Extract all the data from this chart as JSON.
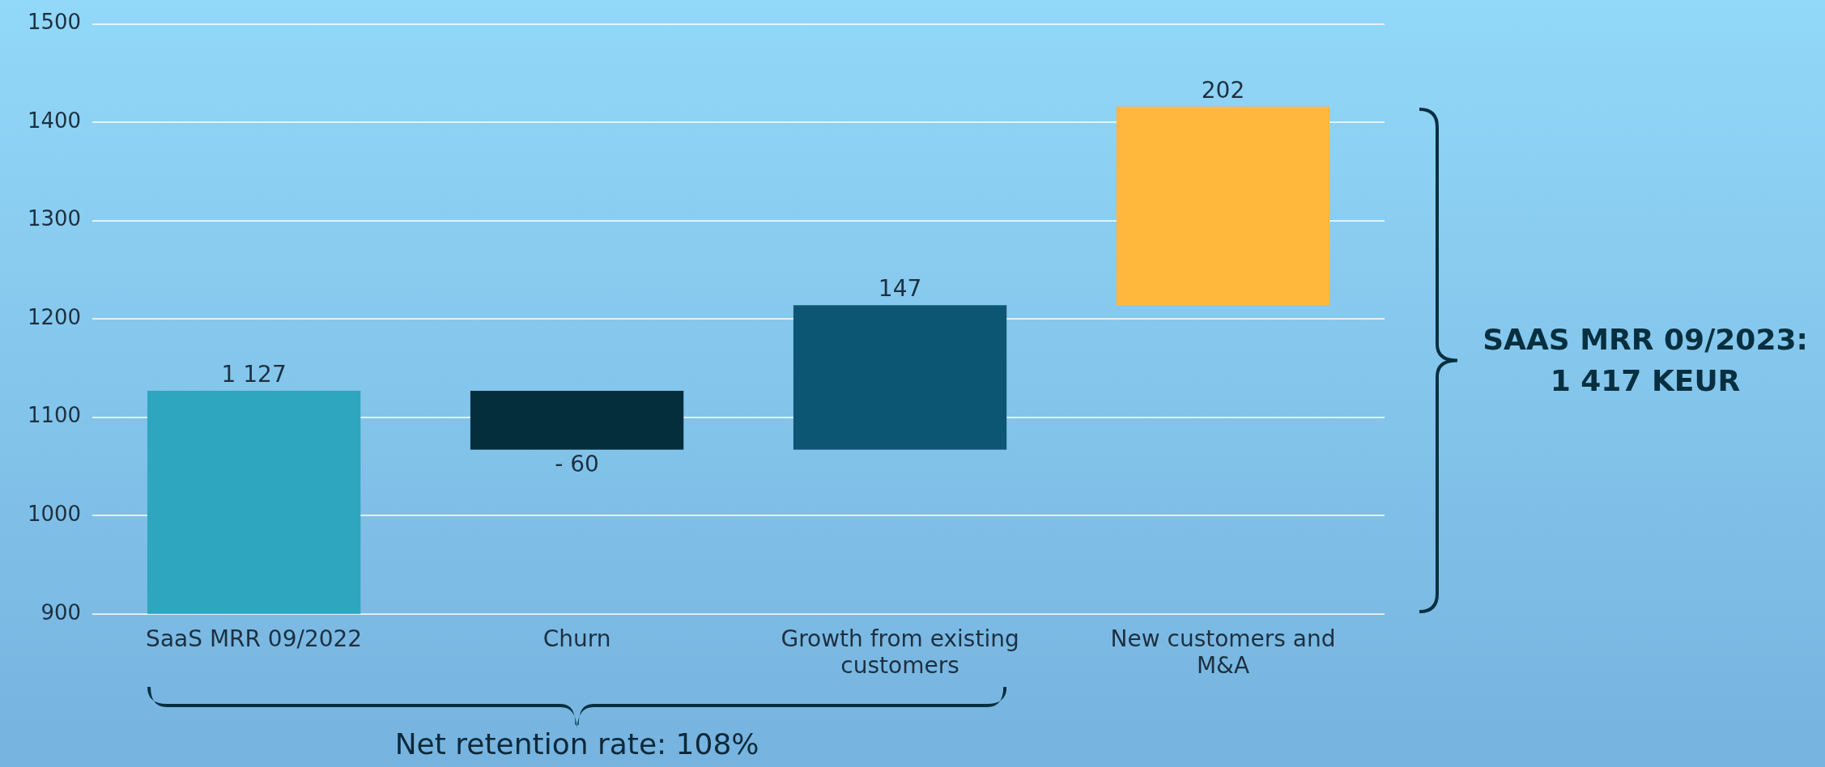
{
  "chart_data": {
    "type": "bar",
    "categories": [
      "SaaS MRR 09/2022",
      "Churn",
      "Growth from existing customers",
      "New customers and M&A"
    ],
    "values": [
      1127,
      -60,
      147,
      202
    ],
    "base": [
      null,
      1127,
      1067,
      1214
    ],
    "colors": [
      "#2ea6bf",
      "#052e3d",
      "#0d5673",
      "#ffb83b"
    ],
    "value_labels": [
      "1 127",
      "- 60",
      "147",
      "202"
    ],
    "ylim": [
      900,
      1500
    ],
    "yticks": [
      900,
      1000,
      1100,
      1200,
      1300,
      1400,
      1500
    ],
    "grid": "y",
    "legend": false,
    "annotations": [
      "SAAS MRR 09/2023: 1 417 KEUR",
      "Net retention rate: 108%"
    ]
  }
}
